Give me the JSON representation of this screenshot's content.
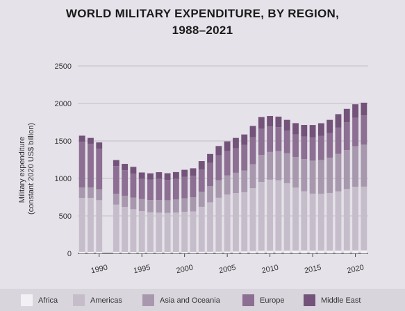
{
  "chart_data": {
    "type": "bar",
    "stacked": true,
    "title": [
      "WORLD MILITARY EXPENDITURE, BY REGION,",
      "1988–2021"
    ],
    "ylabel": [
      "Military expenditure",
      "(constant 2020 US$ billion)"
    ],
    "xlabel": "",
    "ylim": [
      0,
      2500
    ],
    "y_ticks": [
      0,
      500,
      1000,
      1500,
      2000,
      2500
    ],
    "x_ticks": [
      1990,
      1995,
      2000,
      2005,
      2010,
      2015,
      2020
    ],
    "grid": "horizontal",
    "legend_position": "bottom",
    "years": [
      1988,
      1989,
      1990,
      1991,
      1992,
      1993,
      1994,
      1995,
      1996,
      1997,
      1998,
      1999,
      2000,
      2001,
      2002,
      2003,
      2004,
      2005,
      2006,
      2007,
      2008,
      2009,
      2010,
      2011,
      2012,
      2013,
      2014,
      2015,
      2016,
      2017,
      2018,
      2019,
      2020,
      2021
    ],
    "series": [
      {
        "name": "Africa",
        "color": "#f2f0f4",
        "values": [
          20,
          20,
          20,
          null,
          20,
          19,
          19,
          19,
          18,
          18,
          19,
          19,
          20,
          20,
          21,
          21,
          22,
          24,
          25,
          26,
          30,
          33,
          33,
          34,
          36,
          37,
          38,
          37,
          36,
          36,
          37,
          38,
          39,
          40
        ]
      },
      {
        "name": "Americas",
        "color": "#c6bdcb",
        "values": [
          720,
          720,
          690,
          null,
          630,
          600,
          570,
          545,
          530,
          525,
          520,
          525,
          535,
          540,
          600,
          660,
          720,
          760,
          780,
          790,
          840,
          920,
          950,
          940,
          900,
          840,
          790,
          760,
          760,
          770,
          790,
          820,
          850,
          850
        ]
      },
      {
        "name": "Asia and Oceania",
        "color": "#a898ae",
        "values": [
          140,
          140,
          145,
          null,
          145,
          150,
          155,
          160,
          165,
          170,
          170,
          175,
          180,
          190,
          200,
          215,
          235,
          255,
          270,
          290,
          320,
          360,
          370,
          390,
          400,
          410,
          430,
          440,
          450,
          470,
          500,
          520,
          540,
          560
        ]
      },
      {
        "name": "Europe",
        "color": "#8c6f92",
        "values": [
          610,
          580,
          540,
          null,
          370,
          340,
          320,
          270,
          270,
          280,
          270,
          275,
          285,
          285,
          300,
          310,
          330,
          325,
          325,
          340,
          360,
          350,
          340,
          320,
          300,
          300,
          300,
          310,
          320,
          330,
          350,
          370,
          380,
          390
        ]
      },
      {
        "name": "Middle East",
        "color": "#735379",
        "values": [
          80,
          80,
          85,
          null,
          80,
          85,
          90,
          85,
          85,
          90,
          90,
          90,
          95,
          100,
          110,
          120,
          125,
          130,
          140,
          140,
          150,
          155,
          140,
          140,
          145,
          150,
          155,
          165,
          170,
          175,
          180,
          180,
          180,
          170
        ]
      }
    ]
  }
}
